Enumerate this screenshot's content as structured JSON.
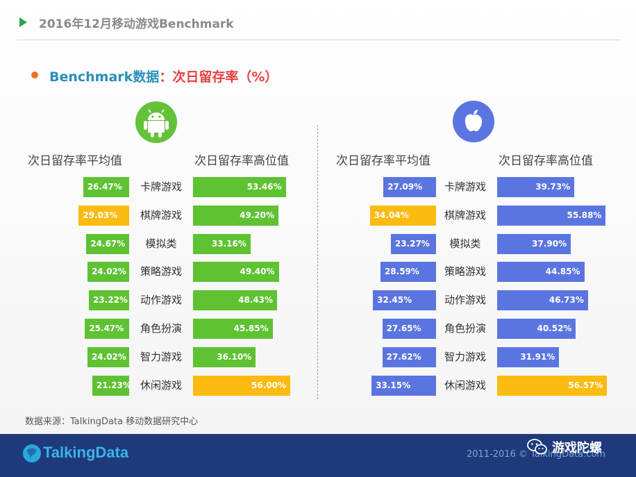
{
  "header": {
    "title": "2016年12月移动游戏Benchmark"
  },
  "section": {
    "lead": "Benchmark数据",
    "sep": "：",
    "metric": "次日留存率（%）"
  },
  "colors": {
    "android_green": "#5ec232",
    "ios_blue": "#5b75e0",
    "highlight_yellow": "#fbbb10",
    "android_icon_bg": "#63c23a",
    "ios_icon_bg": "#5b75e0"
  },
  "icons": {
    "android": "android-icon",
    "ios": "apple-icon",
    "wechat": "wechat-icon"
  },
  "chart_data": [
    {
      "type": "bar",
      "platform": "android",
      "categories": [
        "卡牌游戏",
        "棋牌游戏",
        "模拟类",
        "策略游戏",
        "动作游戏",
        "角色扮演",
        "智力游戏",
        "休闲游戏"
      ],
      "series": [
        {
          "name": "次日留存率平均值",
          "values": [
            26.47,
            29.03,
            24.67,
            24.02,
            23.22,
            25.47,
            24.02,
            21.23
          ],
          "labels": [
            "26.47%",
            "29.03%",
            "24.67%",
            "24.02%",
            "23.22%",
            "25.47%",
            "24.02%",
            "21.23%"
          ],
          "highlight_index": 1
        },
        {
          "name": "次日留存率高位值",
          "values": [
            53.46,
            49.2,
            33.16,
            49.4,
            48.43,
            45.85,
            36.1,
            56.0
          ],
          "labels": [
            "53.46%",
            "49.20%",
            "33.16%",
            "49.40%",
            "48.43%",
            "45.85%",
            "36.10%",
            "56.00%"
          ],
          "highlight_index": 7
        }
      ]
    },
    {
      "type": "bar",
      "platform": "ios",
      "categories": [
        "卡牌游戏",
        "棋牌游戏",
        "模拟类",
        "策略游戏",
        "动作游戏",
        "角色扮演",
        "智力游戏",
        "休闲游戏"
      ],
      "series": [
        {
          "name": "次日留存率平均值",
          "values": [
            27.09,
            34.04,
            23.27,
            28.59,
            32.45,
            27.65,
            27.62,
            33.15
          ],
          "labels": [
            "27.09%",
            "34.04%",
            "23.27%",
            "28.59%",
            "32.45%",
            "27.65%",
            "27.62%",
            "33.15%"
          ],
          "highlight_index": 1
        },
        {
          "name": "次日留存率高位值",
          "values": [
            39.73,
            55.88,
            37.9,
            44.85,
            46.73,
            40.52,
            31.91,
            56.57
          ],
          "labels": [
            "39.73%",
            "55.88%",
            "37.90%",
            "44.85%",
            "46.73%",
            "40.52%",
            "31.91%",
            "56.57%"
          ],
          "highlight_index": 7
        }
      ]
    }
  ],
  "source": "数据来源：TalkingData 移动数据研究中心",
  "footer": {
    "logo_text": "TalkingData",
    "copyright": "2011-2016 © TalkingData.com",
    "wechat_name": "游戏陀螺"
  }
}
